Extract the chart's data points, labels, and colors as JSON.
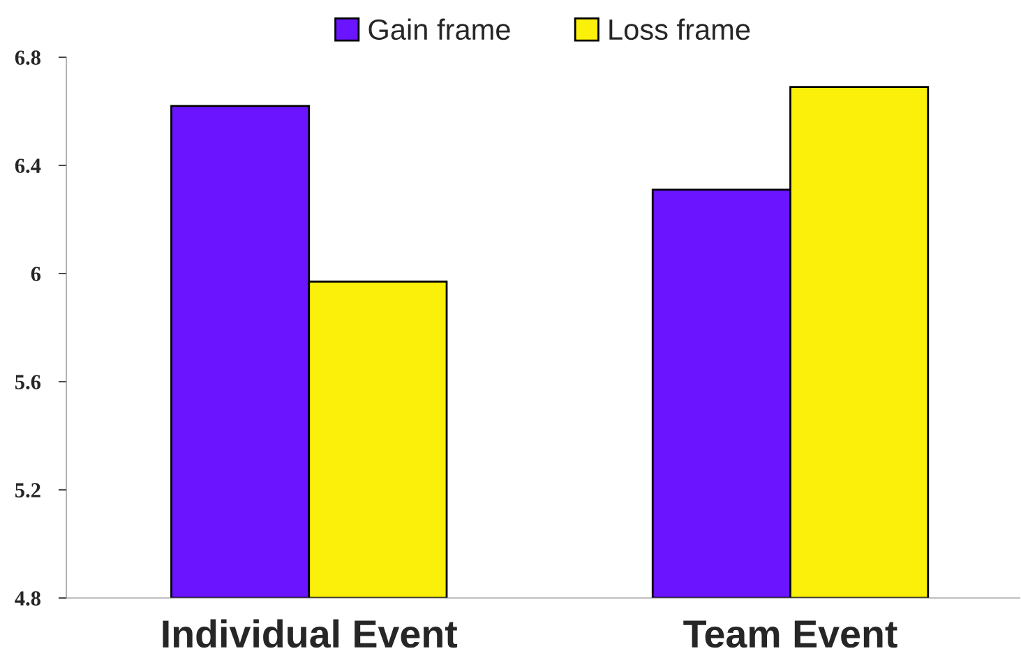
{
  "chart_data": {
    "type": "bar",
    "categories": [
      "Individual Event",
      "Team Event"
    ],
    "series": [
      {
        "name": "Gain frame",
        "color": "#6a14ff",
        "values": [
          6.62,
          6.31
        ]
      },
      {
        "name": "Loss frame",
        "color": "#fbf00a",
        "values": [
          5.97,
          6.69
        ]
      }
    ],
    "ylim": [
      4.8,
      6.8
    ],
    "yticks": [
      4.8,
      5.2,
      5.6,
      6,
      6.4,
      6.8
    ],
    "grid": false,
    "legend": "top"
  }
}
